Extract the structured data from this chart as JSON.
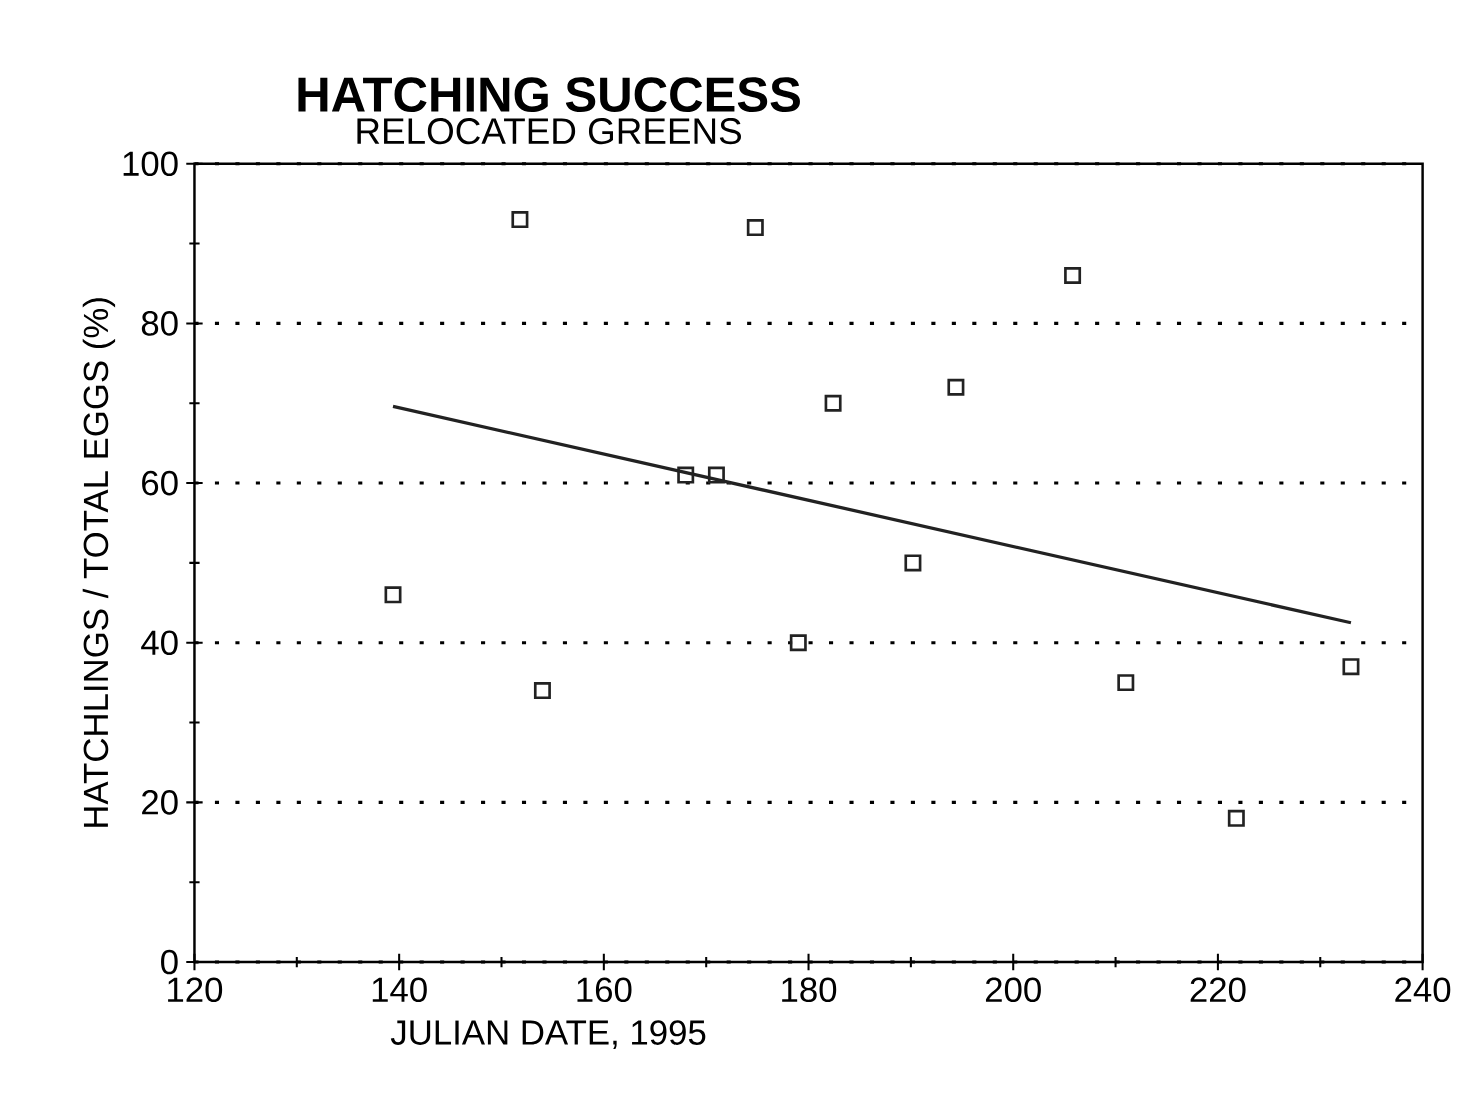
{
  "chart_data": {
    "type": "scatter",
    "title": "HATCHING SUCCESS",
    "subtitle": "RELOCATED  GREENS",
    "xlabel": "JULIAN  DATE,  1995",
    "ylabel": "HATCHLINGS / TOTAL EGGS (%)",
    "xlim": [
      120,
      240
    ],
    "ylim": [
      0,
      100
    ],
    "xticks": [
      120,
      140,
      160,
      180,
      200,
      220,
      240
    ],
    "yticks": [
      0,
      20,
      40,
      60,
      80,
      100
    ],
    "grid": "y",
    "marker": "square",
    "series": [
      {
        "color": "#222222",
        "x": [
          139.4,
          151.8,
          154,
          168,
          171,
          174.8,
          179,
          182.4,
          190.2,
          194.4,
          205.8,
          211,
          221.8,
          233
        ],
        "values": [
          46,
          93,
          34,
          61,
          61,
          92,
          40,
          70,
          50,
          72,
          86,
          35,
          18,
          37
        ]
      },
      {
        "type": "line",
        "color": "#222222",
        "marker": "none",
        "x": [
          139.4,
          233
        ],
        "values": [
          69.6,
          42.5
        ]
      }
    ]
  }
}
